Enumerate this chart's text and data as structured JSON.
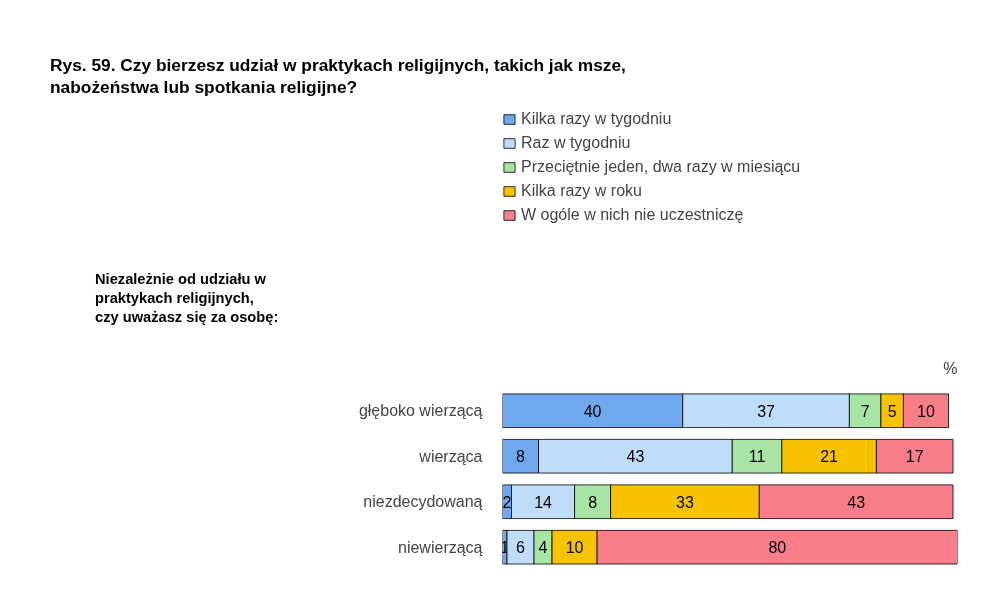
{
  "chart_data": {
    "type": "bar",
    "orientation": "horizontal",
    "stacked": true,
    "data_labels": true,
    "title": "Rys. 59. Czy bierzesz udział w praktykach religijnych, takich jak msze, nabożeństwa lub spotkania religijne?",
    "annotations": [
      "Niezależnie od udziału w praktykach religijnych, czy uważasz się za osobę:",
      "%"
    ],
    "categories": [
      "głęboko wierzącą",
      "wierząca",
      "niezdecydowaną",
      "niewierzącą"
    ],
    "xlim": [
      0,
      101
    ],
    "legend": "top",
    "grid": false,
    "series": [
      {
        "name": "Kilka razy w tygodniu",
        "color": "#6fa8ec",
        "values": [
          40,
          8,
          2,
          1
        ]
      },
      {
        "name": "Raz w tygodniu",
        "color": "#bfdcfa",
        "values": [
          37,
          43,
          14,
          6
        ]
      },
      {
        "name": "Przeciętnie jeden, dwa razy w miesiącu",
        "color": "#a8e4a4",
        "values": [
          7,
          11,
          8,
          4
        ]
      },
      {
        "name": "Kilka razy w roku",
        "color": "#f7c200",
        "values": [
          5,
          21,
          33,
          10
        ]
      },
      {
        "name": "W ogóle w nich nie uczestniczę",
        "color": "#f87e8a",
        "values": [
          10,
          17,
          43,
          80
        ]
      }
    ]
  }
}
